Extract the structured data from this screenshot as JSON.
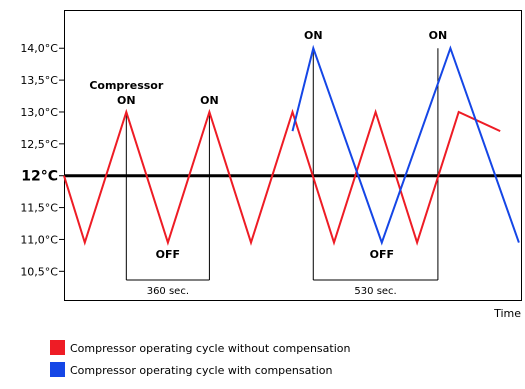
{
  "chart_data": {
    "type": "line",
    "xlabel": "Time",
    "ylabel": "",
    "ylim": [
      10.05,
      14.6
    ],
    "xlim": [
      0,
      1100
    ],
    "y_ticks": [
      {
        "value": 14.0,
        "label": "14,0°C"
      },
      {
        "value": 13.5,
        "label": "13,5°C"
      },
      {
        "value": 13.0,
        "label": "13,0°C"
      },
      {
        "value": 12.5,
        "label": "12,5°C"
      },
      {
        "value": 12.0,
        "label": "12°C",
        "major": true
      },
      {
        "value": 11.5,
        "label": "11,5°C"
      },
      {
        "value": 11.0,
        "label": "11,0°C"
      },
      {
        "value": 10.5,
        "label": "10,5°C"
      }
    ],
    "setpoint": 12.0,
    "series": [
      {
        "name": "Compressor operating cycle without compensation",
        "color": "#ee1c25",
        "x": [
          0,
          50,
          150,
          250,
          350,
          450,
          550,
          650,
          750,
          850,
          950,
          1050
        ],
        "y": [
          12.0,
          10.95,
          13.0,
          10.95,
          13.0,
          10.95,
          13.0,
          10.95,
          13.0,
          10.95,
          13.0,
          12.7
        ]
      },
      {
        "name": "Compressor operating cycle with compensation",
        "color": "#1546e6",
        "x": [
          550,
          600,
          765,
          930,
          1095
        ],
        "y": [
          12.7,
          14.0,
          10.95,
          14.0,
          10.95
        ]
      }
    ],
    "annotations": {
      "compressor_label": "Compressor",
      "on": "ON",
      "off": "OFF",
      "interval_360": "360 sec.",
      "interval_530": "530 sec."
    }
  },
  "legend": {
    "items": [
      {
        "label": "Compressor operating cycle without compensation",
        "color": "#ee1c25"
      },
      {
        "label": "Compressor operating cycle with compensation",
        "color": "#1546e6"
      }
    ]
  }
}
